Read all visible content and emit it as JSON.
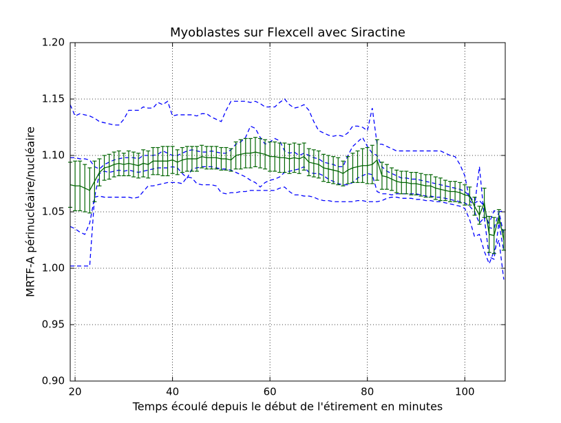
{
  "chart_data": {
    "type": "line",
    "title": "Myoblastes sur Flexcell avec Siractine",
    "x_label": "Temps écoulé depuis le début de l'étirement en minutes",
    "y_label": "MRTF-A périnucléaire/nucléaire",
    "x": [
      19,
      20,
      21,
      22,
      23,
      24,
      25,
      26,
      27,
      28,
      29,
      30,
      31,
      32,
      33,
      34,
      35,
      36,
      37,
      38,
      39,
      40,
      41,
      42,
      43,
      44,
      45,
      46,
      47,
      48,
      49,
      50,
      51,
      52,
      53,
      54,
      55,
      56,
      57,
      58,
      59,
      60,
      61,
      62,
      63,
      64,
      65,
      66,
      67,
      68,
      69,
      70,
      71,
      72,
      73,
      74,
      75,
      76,
      77,
      78,
      79,
      80,
      81,
      82,
      83,
      84,
      85,
      86,
      87,
      88,
      89,
      90,
      91,
      92,
      93,
      94,
      95,
      96,
      97,
      98,
      99,
      100,
      101,
      102,
      103,
      104,
      105,
      106,
      107,
      108
    ],
    "series": [
      {
        "color": "#006400",
        "style": "solid",
        "values": [
          1.074,
          1.073,
          1.073,
          1.071,
          1.069,
          1.077,
          1.085,
          1.089,
          1.09,
          1.092,
          1.093,
          1.092,
          1.093,
          1.092,
          1.091,
          1.093,
          1.092,
          1.095,
          1.095,
          1.095,
          1.095,
          1.096,
          1.094,
          1.096,
          1.097,
          1.097,
          1.097,
          1.099,
          1.098,
          1.098,
          1.098,
          1.097,
          1.097,
          1.096,
          1.1,
          1.101,
          1.102,
          1.102,
          1.103,
          1.102,
          1.101,
          1.099,
          1.099,
          1.098,
          1.098,
          1.097,
          1.098,
          1.097,
          1.099,
          1.094,
          1.093,
          1.092,
          1.089,
          1.088,
          1.087,
          1.086,
          1.084,
          1.087,
          1.089,
          1.09,
          1.091,
          1.091,
          1.092,
          1.096,
          1.082,
          1.081,
          1.079,
          1.077,
          1.076,
          1.076,
          1.075,
          1.075,
          1.074,
          1.073,
          1.073,
          1.071,
          1.07,
          1.069,
          1.068,
          1.068,
          1.067,
          1.065,
          1.064,
          1.055,
          1.047,
          1.058,
          1.03,
          1.029,
          1.046,
          1.025
        ],
        "errors": [
          0.02,
          0.022,
          0.022,
          0.021,
          0.02,
          0.018,
          0.012,
          0.011,
          0.011,
          0.011,
          0.011,
          0.01,
          0.011,
          0.011,
          0.011,
          0.012,
          0.012,
          0.012,
          0.012,
          0.013,
          0.013,
          0.012,
          0.011,
          0.011,
          0.011,
          0.011,
          0.011,
          0.01,
          0.01,
          0.01,
          0.01,
          0.01,
          0.01,
          0.01,
          0.012,
          0.013,
          0.013,
          0.013,
          0.013,
          0.013,
          0.013,
          0.013,
          0.013,
          0.013,
          0.013,
          0.013,
          0.013,
          0.013,
          0.012,
          0.012,
          0.012,
          0.012,
          0.012,
          0.012,
          0.012,
          0.012,
          0.011,
          0.012,
          0.013,
          0.014,
          0.015,
          0.016,
          0.017,
          0.018,
          0.012,
          0.011,
          0.01,
          0.01,
          0.01,
          0.01,
          0.01,
          0.01,
          0.01,
          0.01,
          0.01,
          0.01,
          0.01,
          0.009,
          0.009,
          0.009,
          0.009,
          0.009,
          0.008,
          0.008,
          0.008,
          0.013,
          0.016,
          0.016,
          0.006,
          0.009
        ]
      },
      {
        "color": "#0000ff",
        "style": "dashed",
        "values": [
          1.145,
          1.135,
          1.137,
          1.136,
          1.135,
          1.133,
          1.13,
          1.129,
          1.128,
          1.127,
          1.127,
          1.132,
          1.14,
          1.14,
          1.14,
          1.143,
          1.142,
          1.142,
          1.147,
          1.145,
          1.148,
          1.135,
          1.136,
          1.136,
          1.136,
          1.136,
          1.135,
          1.137,
          1.137,
          1.134,
          1.132,
          1.13,
          1.14,
          1.148,
          1.148,
          1.148,
          1.148,
          1.147,
          1.148,
          1.146,
          1.143,
          1.143,
          1.143,
          1.147,
          1.15,
          1.145,
          1.142,
          1.143,
          1.145,
          1.14,
          1.13,
          1.122,
          1.12,
          1.118,
          1.117,
          1.118,
          1.117,
          1.12,
          1.126,
          1.126,
          1.125,
          1.122,
          1.142,
          1.11,
          1.11,
          1.108,
          1.106,
          1.104,
          1.104,
          1.104,
          1.104,
          1.104,
          1.104,
          1.104,
          1.104,
          1.104,
          1.104,
          1.102,
          1.1,
          1.099,
          1.092,
          1.082,
          1.06,
          1.055,
          1.09,
          1.045,
          1.04,
          1.051,
          1.05,
          1.051
        ]
      },
      {
        "color": "#0000ff",
        "style": "dashed",
        "values": [
          1.037,
          1.035,
          1.032,
          1.03,
          1.04,
          1.063,
          1.064,
          1.063,
          1.063,
          1.063,
          1.063,
          1.063,
          1.063,
          1.062,
          1.063,
          1.068,
          1.073,
          1.073,
          1.074,
          1.075,
          1.076,
          1.076,
          1.076,
          1.075,
          1.081,
          1.08,
          1.075,
          1.074,
          1.074,
          1.074,
          1.073,
          1.067,
          1.066,
          1.067,
          1.067,
          1.068,
          1.068,
          1.069,
          1.069,
          1.069,
          1.069,
          1.069,
          1.069,
          1.071,
          1.072,
          1.068,
          1.065,
          1.065,
          1.064,
          1.064,
          1.063,
          1.061,
          1.06,
          1.06,
          1.059,
          1.059,
          1.059,
          1.059,
          1.059,
          1.06,
          1.06,
          1.059,
          1.059,
          1.059,
          1.06,
          1.062,
          1.063,
          1.063,
          1.062,
          1.062,
          1.062,
          1.061,
          1.061,
          1.06,
          1.06,
          1.059,
          1.059,
          1.058,
          1.057,
          1.056,
          1.055,
          1.053,
          1.043,
          1.028,
          1.03,
          1.015,
          1.004,
          1.015,
          1.025,
          0.99
        ]
      },
      {
        "color": "#0000ff",
        "style": "dashed",
        "values": [
          1.098,
          1.098,
          1.097,
          1.097,
          1.096,
          1.09,
          1.088,
          1.092,
          1.094,
          1.096,
          1.097,
          1.098,
          1.098,
          1.098,
          1.097,
          1.1,
          1.1,
          1.1,
          1.101,
          1.104,
          1.102,
          1.1,
          1.1,
          1.102,
          1.104,
          1.105,
          1.104,
          1.103,
          1.103,
          1.104,
          1.103,
          1.102,
          1.102,
          1.105,
          1.11,
          1.112,
          1.116,
          1.126,
          1.124,
          1.116,
          1.11,
          1.112,
          1.115,
          1.113,
          1.104,
          1.102,
          1.103,
          1.1,
          1.102,
          1.1,
          1.098,
          1.097,
          1.094,
          1.093,
          1.092,
          1.09,
          1.09,
          1.1,
          1.108,
          1.112,
          1.116,
          1.108,
          1.102,
          1.1,
          1.09,
          1.086,
          1.084,
          1.082,
          1.08,
          1.08,
          1.079,
          1.079,
          1.078,
          1.077,
          1.076,
          1.075,
          1.074,
          1.073,
          1.072,
          1.071,
          1.07,
          1.068,
          1.064,
          1.058,
          1.06,
          1.055,
          1.036,
          1.035,
          1.05,
          1.03
        ]
      },
      {
        "color": "#0000ff",
        "style": "dashed",
        "values": [
          1.002,
          1.002,
          1.002,
          1.002,
          1.002,
          1.063,
          1.084,
          1.086,
          1.085,
          1.086,
          1.087,
          1.086,
          1.087,
          1.086,
          1.085,
          1.086,
          1.087,
          1.088,
          1.089,
          1.089,
          1.089,
          1.09,
          1.089,
          1.084,
          1.08,
          1.088,
          1.089,
          1.09,
          1.09,
          1.09,
          1.089,
          1.088,
          1.088,
          1.087,
          1.085,
          1.083,
          1.081,
          1.078,
          1.076,
          1.072,
          1.076,
          1.078,
          1.079,
          1.081,
          1.085,
          1.086,
          1.087,
          1.088,
          1.09,
          1.085,
          1.084,
          1.084,
          1.082,
          1.079,
          1.077,
          1.075,
          1.074,
          1.074,
          1.076,
          1.08,
          1.082,
          1.084,
          1.083,
          1.068,
          1.066,
          1.066,
          1.065,
          1.066,
          1.066,
          1.066,
          1.066,
          1.066,
          1.065,
          1.064,
          1.064,
          1.063,
          1.063,
          1.062,
          1.061,
          1.06,
          1.059,
          1.058,
          1.055,
          1.05,
          1.04,
          1.045,
          1.01,
          1.008,
          1.04,
          1.015
        ]
      }
    ],
    "xlim": [
      19,
      108.3
    ],
    "xticks": [
      20,
      40,
      60,
      80,
      100
    ],
    "ylim": [
      0.9,
      1.2
    ],
    "yticks": [
      {
        "value": 0.9,
        "label": "0.90"
      },
      0.95,
      {
        "value": 1.0,
        "label": "1.00"
      },
      1.05,
      {
        "value": 1.1,
        "label": "1.10"
      },
      1.15,
      {
        "value": 1.2,
        "label": "1.20"
      }
    ],
    "grid": true
  }
}
